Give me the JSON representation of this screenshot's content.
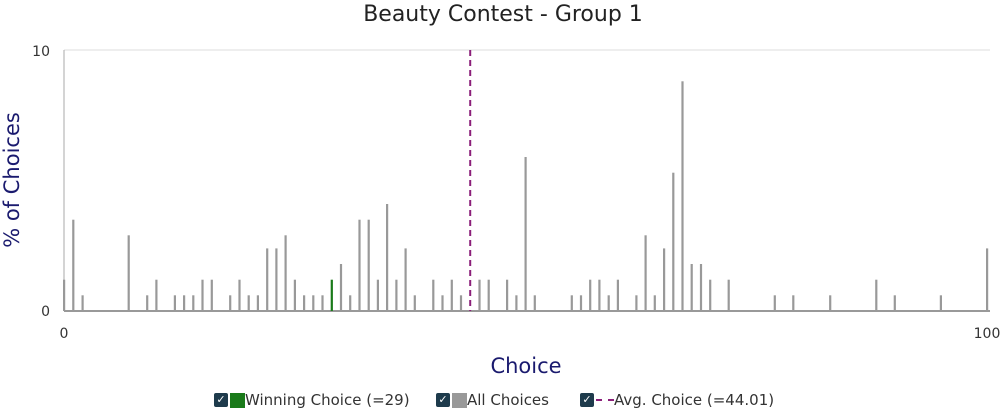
{
  "chart_data": {
    "type": "bar",
    "title": "Beauty Contest - Group 1",
    "xlabel": "Choice",
    "ylabel": "% of Choices",
    "xlim": [
      0,
      100
    ],
    "ylim": [
      0,
      10
    ],
    "x_ticks": [
      "0",
      "100"
    ],
    "y_ticks": [
      "0",
      "10"
    ],
    "grid": true,
    "legend_position": "bottom",
    "winning_choice": 29,
    "average_choice": 44.01,
    "colors": {
      "all_choices": "#999999",
      "winning": "#1a7a1a",
      "average": "#8b1f7a"
    },
    "series": [
      {
        "name": "All Choices",
        "x": [
          0,
          1,
          2,
          7,
          9,
          10,
          12,
          13,
          14,
          15,
          16,
          18,
          19,
          20,
          21,
          22,
          23,
          24,
          25,
          26,
          27,
          28,
          29,
          30,
          31,
          32,
          33,
          34,
          35,
          36,
          37,
          38,
          40,
          41,
          42,
          43,
          45,
          46,
          48,
          49,
          50,
          51,
          55,
          56,
          57,
          58,
          59,
          60,
          62,
          63,
          64,
          65,
          66,
          67,
          68,
          69,
          70,
          72,
          77,
          79,
          83,
          88,
          90,
          95,
          100
        ],
        "values": [
          1.2,
          3.5,
          0.6,
          2.9,
          0.6,
          1.2,
          0.6,
          0.6,
          0.6,
          1.2,
          1.2,
          0.6,
          1.2,
          0.6,
          0.6,
          2.4,
          2.4,
          2.9,
          1.2,
          0.6,
          0.6,
          0.6,
          1.2,
          1.8,
          0.6,
          3.5,
          3.5,
          1.2,
          4.1,
          1.2,
          2.4,
          0.6,
          1.2,
          0.6,
          1.2,
          0.6,
          1.2,
          1.2,
          1.2,
          0.6,
          5.9,
          0.6,
          0.6,
          0.6,
          1.2,
          1.2,
          0.6,
          1.2,
          0.6,
          2.9,
          0.6,
          2.4,
          5.3,
          8.8,
          1.8,
          1.8,
          1.2,
          1.2,
          0.6,
          0.6,
          0.6,
          1.2,
          0.6,
          0.6,
          2.4
        ]
      }
    ]
  },
  "legend": [
    {
      "check": "✓",
      "label": "Winning Choice (=29)"
    },
    {
      "check": "✓",
      "label": "All Choices"
    },
    {
      "check": "✓",
      "label": "Avg. Choice (=44.01)"
    }
  ]
}
